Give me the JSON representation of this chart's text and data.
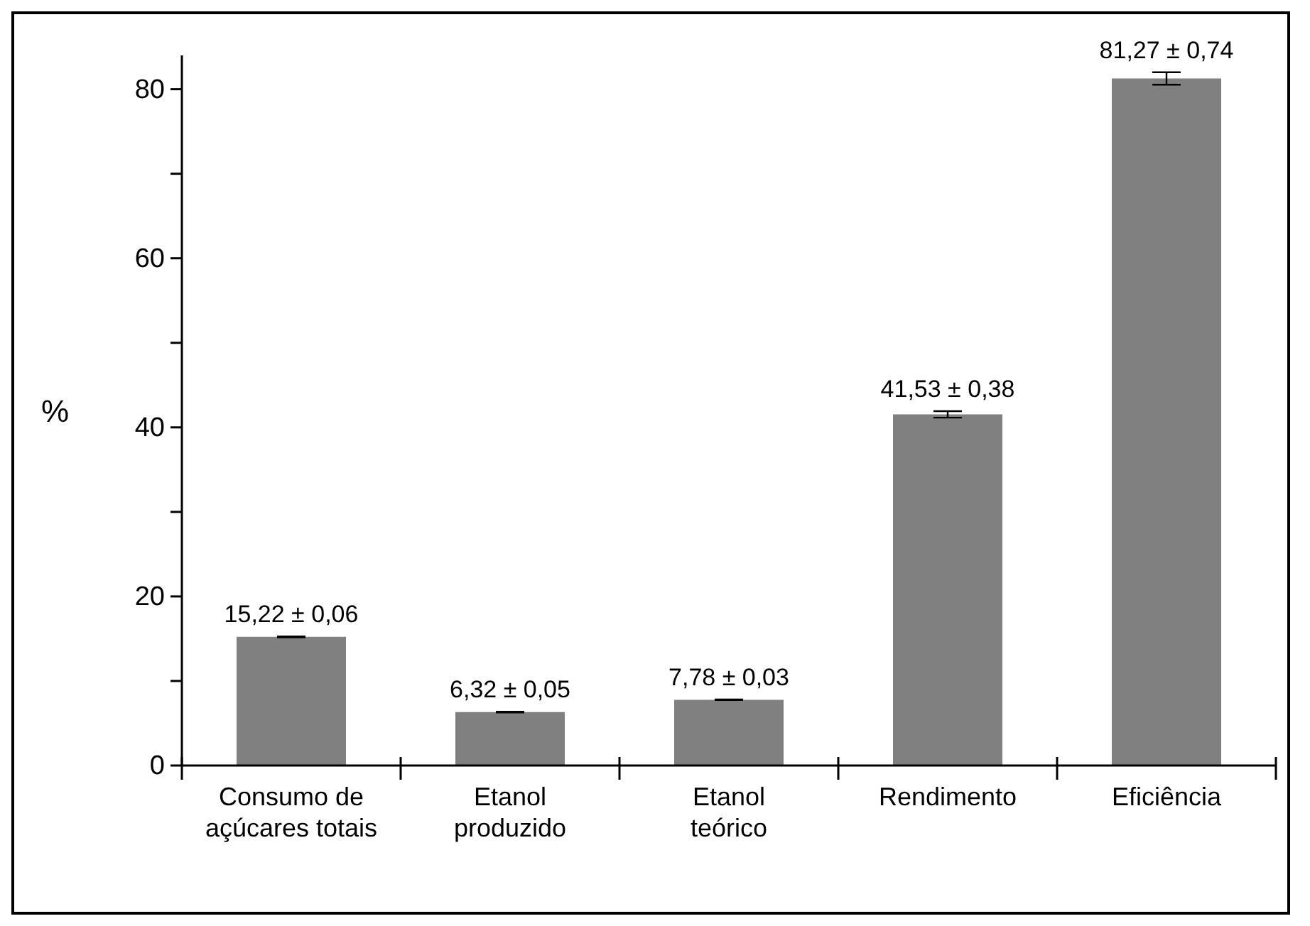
{
  "chart_data": {
    "type": "bar",
    "ylabel": "%",
    "categories": [
      "Consumo de\naçúcares totais",
      "Etanol\nproduzido",
      "Etanol\nteórico",
      "Rendimento",
      "Eficiência"
    ],
    "values": [
      15.22,
      6.32,
      7.78,
      41.53,
      81.27
    ],
    "errors": [
      0.06,
      0.05,
      0.03,
      0.38,
      0.74
    ],
    "value_labels": [
      "15,22 ± 0,06",
      "6,32 ± 0,05",
      "7,78 ± 0,03",
      "41,53 ± 0,38",
      "81,27 ± 0,74"
    ],
    "color": "#808080",
    "ylim": [
      0,
      84
    ],
    "yticks": [
      0,
      {
        "value": 10,
        "label": null
      },
      20,
      {
        "value": 30,
        "label": null
      },
      40,
      {
        "value": 50,
        "label": null
      },
      60,
      {
        "value": 70,
        "label": null
      },
      80
    ],
    "grid": false,
    "legend": false
  }
}
